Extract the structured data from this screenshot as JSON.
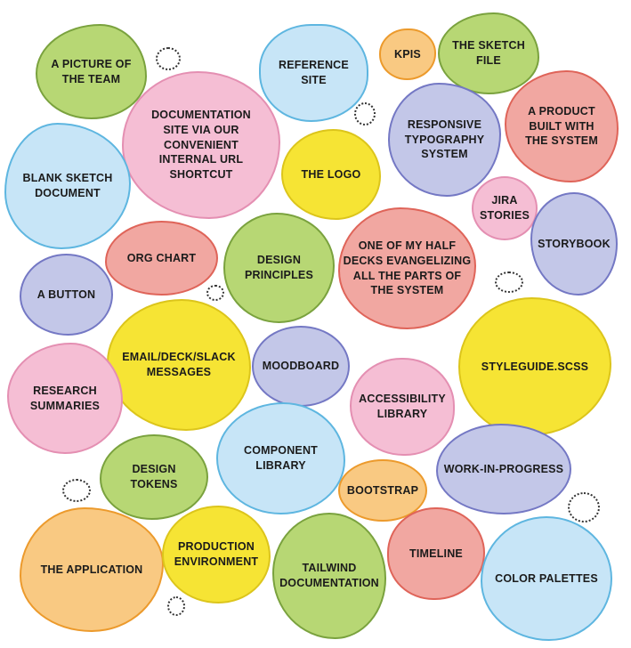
{
  "palette": {
    "green": {
      "fill": "#b7d774",
      "stroke": "#7aa23e"
    },
    "blue": {
      "fill": "#c7e5f7",
      "stroke": "#5eb6e0"
    },
    "orange": {
      "fill": "#f9c982",
      "stroke": "#ec9a2c"
    },
    "pink": {
      "fill": "#f5bed4",
      "stroke": "#e48fb2"
    },
    "lilac": {
      "fill": "#c3c7e8",
      "stroke": "#7478c4"
    },
    "red": {
      "fill": "#f1a7a1",
      "stroke": "#df6459"
    },
    "yellow": {
      "fill": "#f6e434",
      "stroke": "#dcc51b"
    }
  },
  "items": [
    {
      "label": "A PICTURE OF\nTHE TEAM",
      "color": "green"
    },
    {
      "label": "REFERENCE\nSITE",
      "color": "blue"
    },
    {
      "label": "KPIS",
      "color": "orange"
    },
    {
      "label": "THE SKETCH\nFILE",
      "color": "green"
    },
    {
      "label": "DOCUMENTATION\nSITE VIA OUR\nCONVENIENT\nINTERNAL URL\nSHORTCUT",
      "color": "pink"
    },
    {
      "label": "RESPONSIVE\nTYPOGRAPHY\nSYSTEM",
      "color": "lilac"
    },
    {
      "label": "A PRODUCT\nBUILT WITH\nTHE SYSTEM",
      "color": "red"
    },
    {
      "label": "BLANK SKETCH\nDOCUMENT",
      "color": "blue"
    },
    {
      "label": "THE LOGO",
      "color": "yellow"
    },
    {
      "label": "JIRA\nSTORIES",
      "color": "pink"
    },
    {
      "label": "STORYBOOK",
      "color": "lilac"
    },
    {
      "label": "ORG CHART",
      "color": "red"
    },
    {
      "label": "DESIGN\nPRINCIPLES",
      "color": "green"
    },
    {
      "label": "ONE OF MY HALF\nDECKS EVANGELIZING\nALL THE PARTS OF\nTHE SYSTEM",
      "color": "red"
    },
    {
      "label": "A BUTTON",
      "color": "lilac"
    },
    {
      "label": "EMAIL/DECK/SLACK\nMESSAGES",
      "color": "yellow"
    },
    {
      "label": "MOODBOARD",
      "color": "lilac"
    },
    {
      "label": "STYLEGUIDE.SCSS",
      "color": "yellow"
    },
    {
      "label": "RESEARCH\nSUMMARIES",
      "color": "pink"
    },
    {
      "label": "ACCESSIBILITY\nLIBRARY",
      "color": "pink"
    },
    {
      "label": "COMPONENT\nLIBRARY",
      "color": "blue"
    },
    {
      "label": "DESIGN\nTOKENS",
      "color": "green"
    },
    {
      "label": "WORK-IN-PROGRESS",
      "color": "lilac"
    },
    {
      "label": "BOOTSTRAP",
      "color": "orange"
    },
    {
      "label": "THE APPLICATION",
      "color": "orange"
    },
    {
      "label": "PRODUCTION\nENVIRONMENT",
      "color": "yellow"
    },
    {
      "label": "TAILWIND\nDOCUMENTATION",
      "color": "green"
    },
    {
      "label": "TIMELINE",
      "color": "red"
    },
    {
      "label": "COLOR PALETTES",
      "color": "blue"
    }
  ]
}
